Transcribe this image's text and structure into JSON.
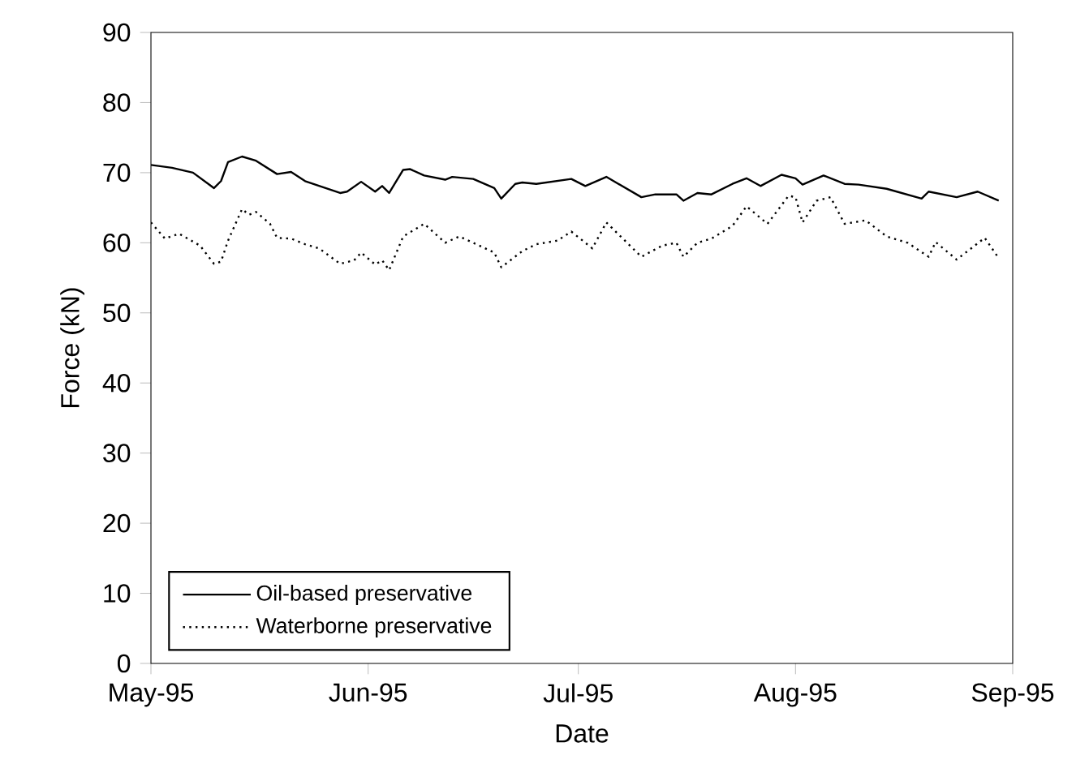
{
  "chart_data": {
    "type": "line",
    "xlabel": "Date",
    "ylabel": "Force (kN)",
    "xlim": [
      "1995-05-01",
      "1995-09-01"
    ],
    "xticks": [
      {
        "value": "1995-05-01",
        "label": "May-95"
      },
      {
        "value": "1995-06-01",
        "label": "Jun-95"
      },
      {
        "value": "1995-07-01",
        "label": "Jul-95"
      },
      {
        "value": "1995-08-01",
        "label": "Aug-95"
      },
      {
        "value": "1995-09-01",
        "label": "Sep-95"
      }
    ],
    "ylim": [
      0,
      90
    ],
    "yticks": [
      0,
      10,
      20,
      30,
      40,
      50,
      60,
      70,
      80,
      90
    ],
    "grid": false,
    "legend": "bottom left",
    "marker": "none",
    "series": [
      {
        "name": "Oil-based preservative",
        "color": "#000000",
        "line_style": "solid",
        "x": [
          "1995-05-01",
          "1995-05-04",
          "1995-05-07",
          "1995-05-10",
          "1995-05-11",
          "1995-05-12",
          "1995-05-14",
          "1995-05-16",
          "1995-05-19",
          "1995-05-21",
          "1995-05-23",
          "1995-05-28",
          "1995-05-29",
          "1995-05-31",
          "1995-06-02",
          "1995-06-03",
          "1995-06-04",
          "1995-06-06",
          "1995-06-07",
          "1995-06-09",
          "1995-06-12",
          "1995-06-13",
          "1995-06-16",
          "1995-06-19",
          "1995-06-20",
          "1995-06-22",
          "1995-06-23",
          "1995-06-25",
          "1995-06-30",
          "1995-07-02",
          "1995-07-05",
          "1995-07-10",
          "1995-07-12",
          "1995-07-15",
          "1995-07-16",
          "1995-07-18",
          "1995-07-20",
          "1995-07-23",
          "1995-07-25",
          "1995-07-27",
          "1995-07-30",
          "1995-08-01",
          "1995-08-02",
          "1995-08-05",
          "1995-08-08",
          "1995-08-10",
          "1995-08-14",
          "1995-08-19",
          "1995-08-20",
          "1995-08-24",
          "1995-08-27",
          "1995-08-30"
        ],
        "values": [
          71.1,
          70.7,
          70.0,
          67.8,
          68.8,
          71.5,
          72.3,
          71.7,
          69.8,
          70.1,
          68.8,
          67.1,
          67.3,
          68.7,
          67.3,
          68.1,
          67.1,
          70.4,
          70.5,
          69.6,
          69.0,
          69.4,
          69.1,
          67.8,
          66.3,
          68.4,
          68.6,
          68.4,
          69.1,
          68.1,
          69.4,
          66.5,
          66.9,
          66.9,
          66.0,
          67.1,
          66.9,
          68.4,
          69.2,
          68.1,
          69.7,
          69.2,
          68.3,
          69.6,
          68.4,
          68.3,
          67.7,
          66.3,
          67.3,
          66.5,
          67.3,
          66.0
        ]
      },
      {
        "name": "Waterborne preservative",
        "color": "#000000",
        "line_style": "dotted",
        "x": [
          "1995-05-01",
          "1995-05-03",
          "1995-05-05",
          "1995-05-08",
          "1995-05-10",
          "1995-05-11",
          "1995-05-12",
          "1995-05-14",
          "1995-05-15",
          "1995-05-16",
          "1995-05-18",
          "1995-05-19",
          "1995-05-21",
          "1995-05-23",
          "1995-05-25",
          "1995-05-28",
          "1995-05-30",
          "1995-05-31",
          "1995-06-02",
          "1995-06-03",
          "1995-06-04",
          "1995-06-06",
          "1995-06-08",
          "1995-06-09",
          "1995-06-12",
          "1995-06-14",
          "1995-06-16",
          "1995-06-19",
          "1995-06-20",
          "1995-06-23",
          "1995-06-25",
          "1995-06-28",
          "1995-06-30",
          "1995-07-02",
          "1995-07-03",
          "1995-07-05",
          "1995-07-10",
          "1995-07-13",
          "1995-07-15",
          "1995-07-16",
          "1995-07-18",
          "1995-07-20",
          "1995-07-23",
          "1995-07-25",
          "1995-07-28",
          "1995-07-31",
          "1995-08-01",
          "1995-08-02",
          "1995-08-04",
          "1995-08-06",
          "1995-08-08",
          "1995-08-11",
          "1995-08-14",
          "1995-08-17",
          "1995-08-20",
          "1995-08-21",
          "1995-08-24",
          "1995-08-28",
          "1995-08-30"
        ],
        "values": [
          62.9,
          60.6,
          61.3,
          59.6,
          57.0,
          57.3,
          60.3,
          64.8,
          64.0,
          64.4,
          62.7,
          60.7,
          60.6,
          59.8,
          59.2,
          57.0,
          57.5,
          58.6,
          56.9,
          57.5,
          56.1,
          60.9,
          62.1,
          62.7,
          60.0,
          60.9,
          60.0,
          58.6,
          56.5,
          58.8,
          59.8,
          60.3,
          61.6,
          60.0,
          59.2,
          62.9,
          58.0,
          59.6,
          60.0,
          58.0,
          60.0,
          60.6,
          62.4,
          65.2,
          62.7,
          66.7,
          66.5,
          62.9,
          66.0,
          66.5,
          62.7,
          63.2,
          60.9,
          60.0,
          58.0,
          60.1,
          57.6,
          60.7,
          57.8
        ]
      }
    ]
  }
}
